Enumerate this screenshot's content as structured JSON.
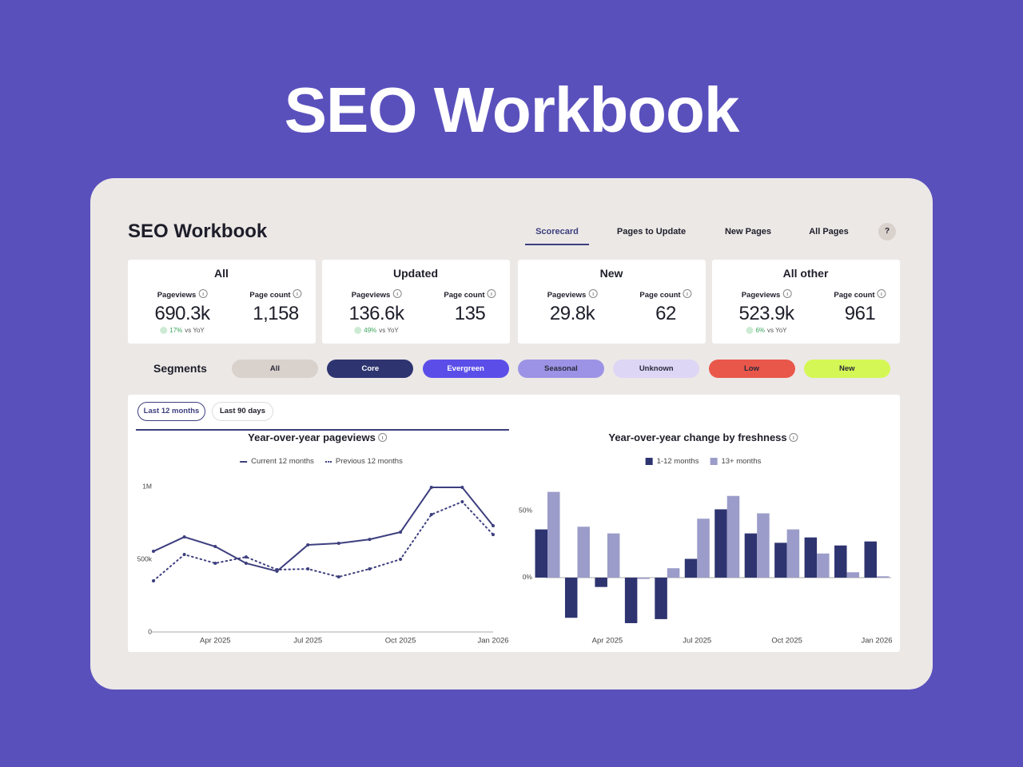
{
  "hero_title": "SEO Workbook",
  "header": {
    "title": "SEO Workbook",
    "tabs": [
      "Scorecard",
      "Pages to Update",
      "New Pages",
      "All Pages"
    ],
    "help": "?"
  },
  "scorecards": [
    {
      "title": "All",
      "metrics": [
        {
          "label": "Pageviews",
          "value": "690.3k",
          "change": "17%",
          "change_label": "vs YoY"
        },
        {
          "label": "Page count",
          "value": "1,158"
        }
      ]
    },
    {
      "title": "Updated",
      "metrics": [
        {
          "label": "Pageviews",
          "value": "136.6k",
          "change": "49%",
          "change_label": "vs YoY"
        },
        {
          "label": "Page count",
          "value": "135"
        }
      ]
    },
    {
      "title": "New",
      "metrics": [
        {
          "label": "Pageviews",
          "value": "29.8k"
        },
        {
          "label": "Page count",
          "value": "62"
        }
      ]
    },
    {
      "title": "All other",
      "metrics": [
        {
          "label": "Pageviews",
          "value": "523.9k",
          "change": "6%",
          "change_label": "vs YoY"
        },
        {
          "label": "Page count",
          "value": "961"
        }
      ]
    }
  ],
  "segments": {
    "label": "Segments",
    "items": [
      {
        "name": "All",
        "color": "#d9d1cb",
        "text_color": "#2a2a3a"
      },
      {
        "name": "Core",
        "color": "#2e3470",
        "text_color": "#ffffff"
      },
      {
        "name": "Evergreen",
        "color": "#5b4ee8",
        "text_color": "#ffffff"
      },
      {
        "name": "Seasonal",
        "color": "#9c93e6",
        "text_color": "#2a2a3a"
      },
      {
        "name": "Unknown",
        "color": "#ddd6f5",
        "text_color": "#2a2a3a"
      },
      {
        "name": "Low",
        "color": "#e9574a",
        "text_color": "#2a2a3a"
      },
      {
        "name": "New",
        "color": "#d5f756",
        "text_color": "#2a2a3a"
      }
    ]
  },
  "range_buttons": [
    "Last 12 months",
    "Last 90 days"
  ],
  "line_chart": {
    "type": "line",
    "title": "Year-over-year pageviews",
    "categories": [
      null,
      null,
      "Apr 2025",
      null,
      null,
      "Jul 2025",
      null,
      null,
      "Oct 2025",
      null,
      null,
      "Jan 2026"
    ],
    "series": [
      {
        "name": "Current 12 months",
        "color": "#3d3f7e",
        "style": "solid",
        "values": [
          555000,
          654000,
          588000,
          473000,
          418000,
          599000,
          610000,
          637000,
          687000,
          995000,
          995000,
          731000
        ]
      },
      {
        "name": "Previous 12 months",
        "color": "#3d3f7e",
        "style": "dotted",
        "values": [
          352000,
          533000,
          473000,
          516000,
          429000,
          434000,
          379000,
          434000,
          500000,
          808000,
          896000,
          670000
        ]
      }
    ],
    "ylim": [
      0,
      1050000
    ],
    "yticks": [
      0,
      {
        "value": 500000,
        "label": "500k"
      },
      {
        "value": 1000000,
        "label": "1M"
      }
    ]
  },
  "bar_chart": {
    "type": "bar",
    "title": "Year-over-year change by freshness",
    "categories": [
      null,
      null,
      "Apr 2025",
      null,
      null,
      "Jul 2025",
      null,
      null,
      "Oct 2025",
      null,
      null,
      "Jan 2026"
    ],
    "series": [
      {
        "name": "1-12 months",
        "color": "#2e3470",
        "values": [
          36,
          -30,
          -7,
          -34,
          -31,
          14,
          51,
          33,
          26,
          30,
          24,
          27
        ]
      },
      {
        "name": "13+ months",
        "color": "#9b9cc9",
        "values": [
          64,
          38,
          33,
          -1,
          7,
          44,
          61,
          48,
          36,
          18,
          4,
          1
        ]
      }
    ],
    "ylim": [
      -40,
      65
    ],
    "yticks": [
      {
        "value": 0,
        "label": "0%"
      },
      {
        "value": 50,
        "label": "50%"
      }
    ]
  }
}
